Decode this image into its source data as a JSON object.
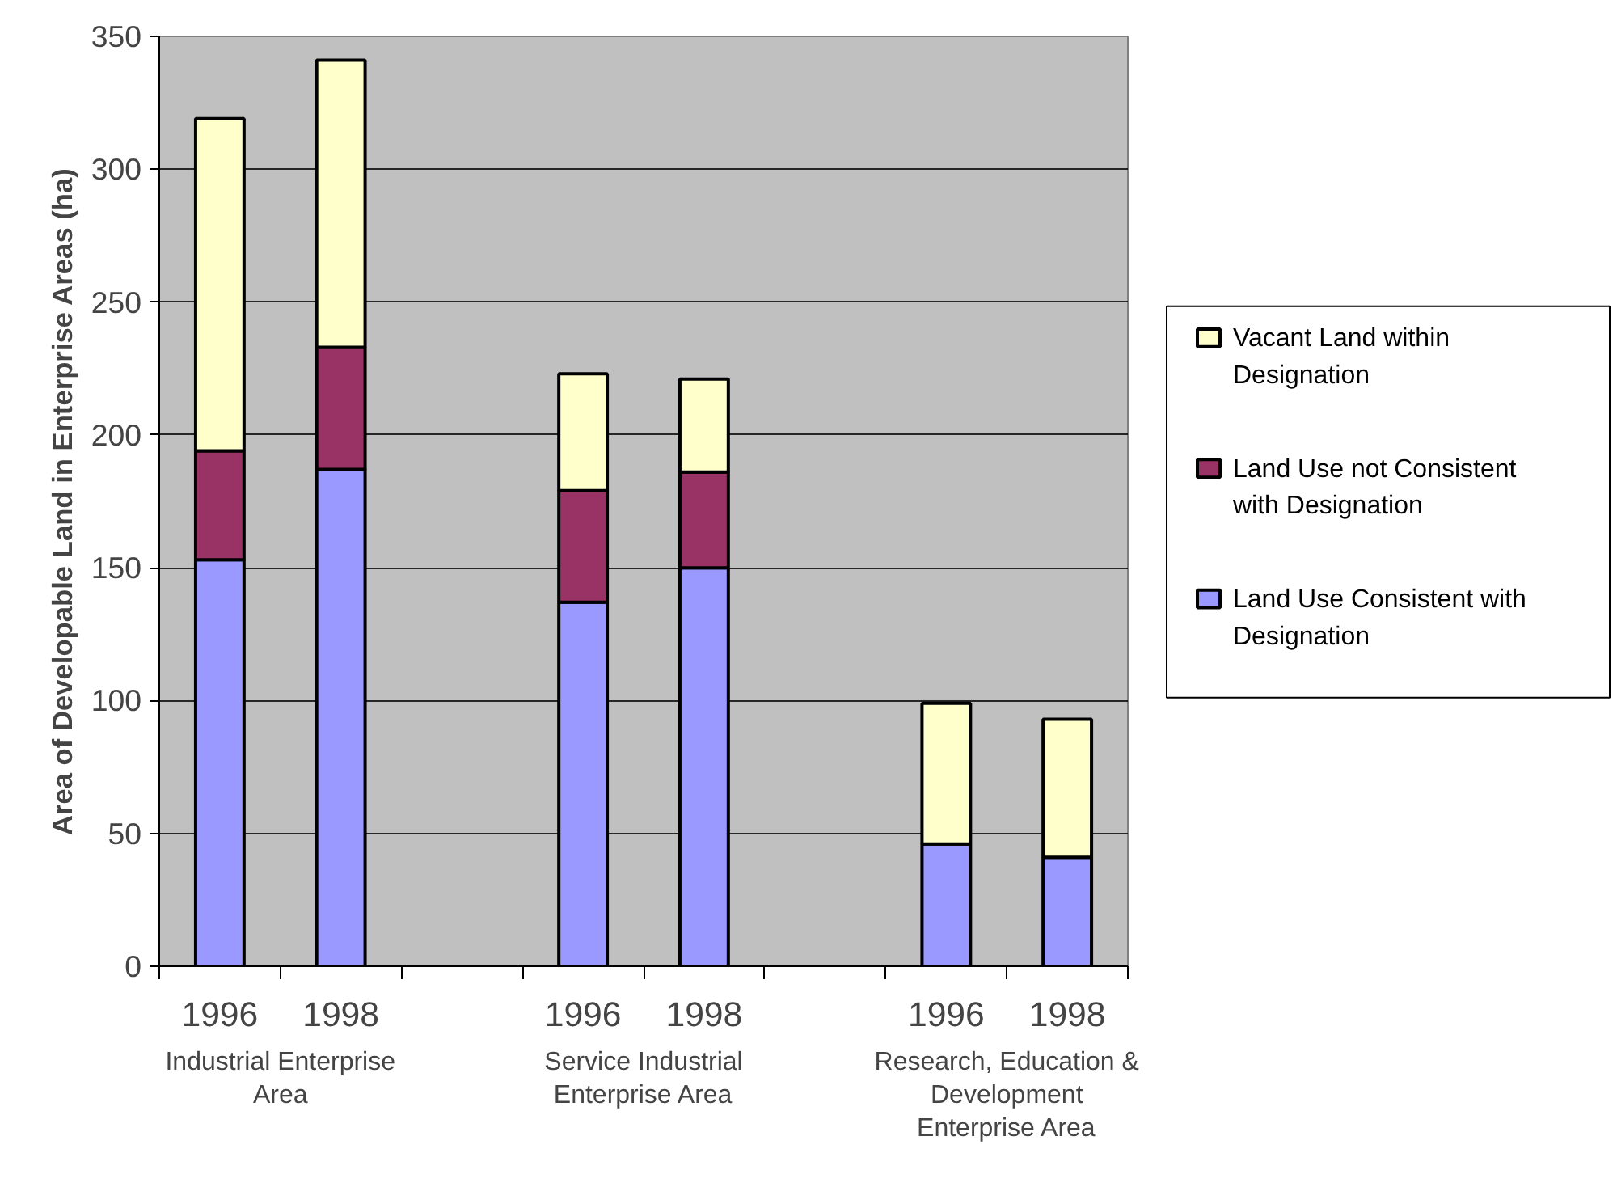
{
  "chart_data": {
    "type": "bar",
    "stacked": true,
    "ylabel": "Area of Developable Land in Enterprise Areas (ha)",
    "categories": [
      "1996",
      "1998",
      null,
      "1996",
      "1998",
      null,
      "1996",
      "1998"
    ],
    "series": [
      {
        "name": "Land Use Consistent with Designation",
        "color": "#9999ff",
        "values": [
          153,
          187,
          null,
          137,
          150,
          null,
          46,
          41
        ]
      },
      {
        "name": "Land Use not Consistent with Designation",
        "color": "#993366",
        "values": [
          41,
          46,
          null,
          42,
          36,
          null,
          null,
          null
        ]
      },
      {
        "name": "Vacant Land within Designation",
        "color": "#ffffcc",
        "values": [
          125,
          108,
          null,
          44,
          35,
          null,
          53,
          52
        ]
      }
    ],
    "ylim": [
      0,
      350
    ],
    "yticks": [
      0,
      50,
      100,
      150,
      200,
      250,
      300,
      350
    ],
    "grid": "y",
    "legend": "right",
    "annotations": [
      "Industrial Enterprise Area",
      "Service Industrial Enterprise Area",
      "Research, Education & Development Enterprise Area"
    ]
  }
}
